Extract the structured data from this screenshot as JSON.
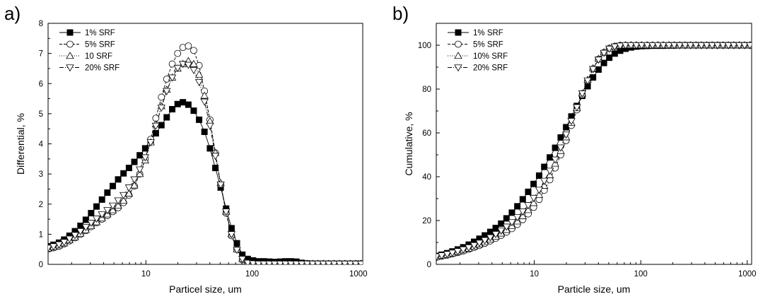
{
  "chart_data": [
    {
      "type": "line",
      "panel_label": "a)",
      "xlabel": "Particel size, um",
      "ylabel": "Differential, %",
      "xscale": "log",
      "xlim": [
        1.2,
        1100
      ],
      "ylim": [
        0,
        8
      ],
      "yticks": [
        0,
        1,
        2,
        3,
        4,
        5,
        6,
        7,
        8
      ],
      "xticks": [
        10,
        100,
        1000
      ],
      "xtick_labels": [
        "10",
        "100",
        "1000"
      ],
      "legend_position": "top-left",
      "series": [
        {
          "name": "1% SRF",
          "marker": "square-filled",
          "dash": "",
          "x": [
            1.2,
            1.35,
            1.52,
            1.7,
            1.91,
            2.15,
            2.42,
            2.72,
            3.05,
            3.43,
            3.86,
            4.34,
            4.88,
            5.48,
            6.16,
            6.93,
            7.79,
            8.76,
            9.85,
            11.1,
            12.4,
            14,
            15.7,
            17.7,
            19.9,
            22.3,
            25.1,
            28.2,
            31.7,
            35.6,
            40.1,
            45.1,
            50.6,
            56.9,
            64,
            71.9,
            80.9,
            90.9,
            102,
            115,
            129,
            145,
            163,
            184,
            206,
            232,
            261,
            293,
            330,
            371,
            417,
            468,
            526,
            592,
            665,
            748,
            841,
            945,
            1060
          ],
          "y": [
            0.6,
            0.65,
            0.72,
            0.82,
            0.95,
            1.1,
            1.28,
            1.48,
            1.7,
            1.92,
            2.15,
            2.38,
            2.6,
            2.82,
            3.02,
            3.2,
            3.4,
            3.62,
            3.85,
            4.1,
            4.35,
            4.62,
            4.88,
            5.15,
            5.32,
            5.38,
            5.3,
            5.1,
            4.8,
            4.4,
            3.85,
            3.2,
            2.55,
            1.85,
            1.2,
            0.7,
            0.32,
            0.18,
            0.13,
            0.1,
            0.1,
            0.09,
            0.08,
            0.09,
            0.1,
            0.1,
            0.09,
            0.05,
            0.03,
            0.02,
            0.02,
            0.02,
            0.02,
            0.02,
            0.02,
            0.02,
            0.02,
            0.02,
            0.02
          ]
        },
        {
          "name": "5% SRF",
          "marker": "circle-open",
          "dash": "4,2",
          "x": [
            1.2,
            1.35,
            1.52,
            1.7,
            1.91,
            2.15,
            2.42,
            2.72,
            3.05,
            3.43,
            3.86,
            4.34,
            4.88,
            5.48,
            6.16,
            6.93,
            7.79,
            8.76,
            9.85,
            11.1,
            12.4,
            14,
            15.7,
            17.7,
            19.9,
            22.3,
            25.1,
            28.2,
            31.7,
            35.6,
            40.1,
            45.1,
            50.6,
            56.9,
            64,
            71.9,
            80.9,
            90.9,
            102,
            115,
            129,
            145,
            163,
            184,
            206,
            232,
            261,
            293,
            330,
            371,
            417,
            468,
            526,
            592,
            665,
            748,
            841,
            945,
            1060
          ],
          "y": [
            0.5,
            0.55,
            0.6,
            0.68,
            0.78,
            0.88,
            1.0,
            1.12,
            1.25,
            1.38,
            1.5,
            1.62,
            1.75,
            1.88,
            2.05,
            2.3,
            2.6,
            3.0,
            3.5,
            4.15,
            4.85,
            5.55,
            6.15,
            6.65,
            7.0,
            7.2,
            7.25,
            7.1,
            6.6,
            5.75,
            4.8,
            3.7,
            2.65,
            1.7,
            0.95,
            0.5,
            0.15,
            0.03,
            0.02,
            0.02,
            0.02,
            0.02,
            0.02,
            0.02,
            0.02,
            0.02,
            0.02,
            0.02,
            0.02,
            0.02,
            0.02,
            0.02,
            0.02,
            0.02,
            0.02,
            0.02,
            0.02,
            0.02,
            0.02
          ]
        },
        {
          "name": "10 SRF",
          "marker": "triangle-up-open",
          "dash": "1,2",
          "x": [
            1.2,
            1.35,
            1.52,
            1.7,
            1.91,
            2.15,
            2.42,
            2.72,
            3.05,
            3.43,
            3.86,
            4.34,
            4.88,
            5.48,
            6.16,
            6.93,
            7.79,
            8.76,
            9.85,
            11.1,
            12.4,
            14,
            15.7,
            17.7,
            19.9,
            22.3,
            25.1,
            28.2,
            31.7,
            35.6,
            40.1,
            45.1,
            50.6,
            56.9,
            64,
            71.9,
            80.9,
            90.9,
            102,
            115,
            129,
            145,
            163,
            184,
            206,
            232,
            261,
            293,
            330,
            371,
            417,
            468,
            526,
            592,
            665,
            748,
            841,
            945,
            1060
          ],
          "y": [
            0.52,
            0.57,
            0.63,
            0.7,
            0.8,
            0.9,
            1.02,
            1.14,
            1.27,
            1.4,
            1.53,
            1.66,
            1.8,
            1.95,
            2.12,
            2.35,
            2.62,
            3.0,
            3.45,
            4.05,
            4.65,
            5.25,
            5.8,
            6.2,
            6.5,
            6.65,
            6.75,
            6.65,
            6.3,
            5.6,
            4.75,
            3.7,
            2.7,
            1.75,
            1.0,
            0.5,
            0.18,
            0.05,
            0.03,
            0.02,
            0.02,
            0.02,
            0.02,
            0.02,
            0.02,
            0.02,
            0.02,
            0.02,
            0.02,
            0.02,
            0.02,
            0.02,
            0.02,
            0.02,
            0.02,
            0.02,
            0.02,
            0.02,
            0.02
          ]
        },
        {
          "name": "20% SRF",
          "marker": "triangle-down-open",
          "dash": "6,2,1,2",
          "x": [
            1.2,
            1.35,
            1.52,
            1.7,
            1.91,
            2.15,
            2.42,
            2.72,
            3.05,
            3.43,
            3.86,
            4.34,
            4.88,
            5.48,
            6.16,
            6.93,
            7.79,
            8.76,
            9.85,
            11.1,
            12.4,
            14,
            15.7,
            17.7,
            19.9,
            22.3,
            25.1,
            28.2,
            31.7,
            35.6,
            40.1,
            45.1,
            50.6,
            56.9,
            64,
            71.9,
            80.9,
            90.9,
            102,
            115,
            129,
            145,
            163,
            184,
            206,
            232,
            261,
            293,
            330,
            371,
            417,
            468,
            526,
            592,
            665,
            748,
            841,
            945,
            1060
          ],
          "y": [
            0.55,
            0.6,
            0.66,
            0.74,
            0.85,
            0.97,
            1.1,
            1.24,
            1.38,
            1.52,
            1.66,
            1.8,
            1.95,
            2.12,
            2.3,
            2.55,
            2.82,
            3.15,
            3.55,
            4.05,
            4.6,
            5.2,
            5.75,
            6.2,
            6.52,
            6.65,
            6.62,
            6.45,
            6.05,
            5.4,
            4.6,
            3.6,
            2.65,
            1.75,
            1.0,
            0.48,
            0.18,
            0.05,
            0.03,
            0.02,
            0.02,
            0.02,
            0.02,
            0.02,
            0.02,
            0.02,
            0.02,
            0.02,
            0.02,
            0.02,
            0.02,
            0.02,
            0.02,
            0.02,
            0.02,
            0.02,
            0.02,
            0.02,
            0.02
          ]
        }
      ]
    },
    {
      "type": "line",
      "panel_label": "b)",
      "xlabel": "Particle size, um",
      "ylabel": "Cumulative, %",
      "xscale": "log",
      "xlim": [
        1.2,
        1100
      ],
      "ylim": [
        0,
        110
      ],
      "yticks": [
        0,
        20,
        40,
        60,
        80,
        100
      ],
      "xticks": [
        10,
        100,
        1000
      ],
      "xtick_labels": [
        "10",
        "100",
        "1000"
      ],
      "legend_position": "top-left",
      "series": [
        {
          "name": "1% SRF",
          "marker": "square-filled",
          "dash": "",
          "x": [
            1.2,
            1.35,
            1.52,
            1.7,
            1.91,
            2.15,
            2.42,
            2.72,
            3.05,
            3.43,
            3.86,
            4.34,
            4.88,
            5.48,
            6.16,
            6.93,
            7.79,
            8.76,
            9.85,
            11.1,
            12.4,
            14,
            15.7,
            17.7,
            19.9,
            22.3,
            25.1,
            28.2,
            31.7,
            35.6,
            40.1,
            45.1,
            50.6,
            56.9,
            64,
            71.9,
            80.9,
            90.9,
            102,
            115,
            129,
            145,
            163,
            184,
            206,
            232,
            261,
            293,
            330,
            371,
            417,
            468,
            526,
            592,
            665,
            748,
            841,
            945,
            1060
          ],
          "y": [
            3.8,
            4.4,
            5.1,
            5.9,
            6.8,
            7.8,
            9.0,
            10.3,
            11.7,
            13.2,
            14.8,
            16.6,
            18.6,
            21.0,
            23.6,
            26.5,
            29.7,
            33.1,
            36.7,
            40.5,
            44.5,
            48.8,
            53.2,
            57.9,
            62.6,
            67.5,
            72.3,
            76.9,
            81.3,
            85.3,
            88.9,
            91.9,
            94.3,
            96.2,
            97.5,
            98.4,
            99.0,
            99.4,
            99.6,
            99.7,
            99.8,
            99.8,
            99.8,
            99.9,
            99.9,
            100,
            100,
            100,
            100,
            100,
            100,
            100,
            100,
            100,
            100,
            100,
            100,
            100,
            100
          ]
        },
        {
          "name": "5% SRF",
          "marker": "circle-open",
          "dash": "4,2",
          "x": [
            1.2,
            1.35,
            1.52,
            1.7,
            1.91,
            2.15,
            2.42,
            2.72,
            3.05,
            3.43,
            3.86,
            4.34,
            4.88,
            5.48,
            6.16,
            6.93,
            7.79,
            8.76,
            9.85,
            11.1,
            12.4,
            14,
            15.7,
            17.7,
            19.9,
            22.3,
            25.1,
            28.2,
            31.7,
            35.6,
            40.1,
            45.1,
            50.6,
            56.9,
            64,
            71.9,
            80.9,
            90.9,
            102,
            115,
            129,
            145,
            163,
            184,
            206,
            232,
            261,
            293,
            330,
            371,
            417,
            468,
            526,
            592,
            665,
            748,
            841,
            945,
            1060
          ],
          "y": [
            3.2,
            3.7,
            4.2,
            4.8,
            5.4,
            6.1,
            6.9,
            7.7,
            8.6,
            9.6,
            10.7,
            11.9,
            13.2,
            14.7,
            16.3,
            18.2,
            20.4,
            23.0,
            26.0,
            29.6,
            33.8,
            38.6,
            44.0,
            50.0,
            56.5,
            63.4,
            70.5,
            77.4,
            83.8,
            89.2,
            93.6,
            96.7,
            98.6,
            99.5,
            99.9,
            100,
            100,
            100,
            100,
            100,
            100,
            100,
            100,
            100,
            100,
            100,
            100,
            100,
            100,
            100,
            100,
            100,
            100,
            100,
            100,
            100,
            100,
            100,
            100
          ]
        },
        {
          "name": "10% SRF",
          "marker": "triangle-up-open",
          "dash": "1,2",
          "x": [
            1.2,
            1.35,
            1.52,
            1.7,
            1.91,
            2.15,
            2.42,
            2.72,
            3.05,
            3.43,
            3.86,
            4.34,
            4.88,
            5.48,
            6.16,
            6.93,
            7.79,
            8.76,
            9.85,
            11.1,
            12.4,
            14,
            15.7,
            17.7,
            19.9,
            22.3,
            25.1,
            28.2,
            31.7,
            35.6,
            40.1,
            45.1,
            50.6,
            56.9,
            64,
            71.9,
            80.9,
            90.9,
            102,
            115,
            129,
            145,
            163,
            184,
            206,
            232,
            261,
            293,
            330,
            371,
            417,
            468,
            526,
            592,
            665,
            748,
            841,
            945,
            1060
          ],
          "y": [
            3.4,
            3.9,
            4.4,
            5.0,
            5.7,
            6.4,
            7.2,
            8.1,
            9.1,
            10.2,
            11.4,
            12.7,
            14.1,
            15.7,
            17.5,
            19.6,
            22.0,
            24.8,
            28.0,
            31.7,
            35.9,
            40.7,
            46.0,
            51.8,
            58.0,
            64.6,
            71.3,
            78.0,
            84.2,
            89.5,
            93.8,
            96.8,
            98.6,
            99.5,
            99.9,
            100,
            100,
            100,
            100,
            100,
            100,
            100,
            100,
            100,
            100,
            100,
            100,
            100,
            100,
            100,
            100,
            100,
            100,
            100,
            100,
            100,
            100,
            100,
            100
          ]
        },
        {
          "name": "20% SRF",
          "marker": "triangle-down-open",
          "dash": "6,2,1,2",
          "x": [
            1.2,
            1.35,
            1.52,
            1.7,
            1.91,
            2.15,
            2.42,
            2.72,
            3.05,
            3.43,
            3.86,
            4.34,
            4.88,
            5.48,
            6.16,
            6.93,
            7.79,
            8.76,
            9.85,
            11.1,
            12.4,
            14,
            15.7,
            17.7,
            19.9,
            22.3,
            25.1,
            28.2,
            31.7,
            35.6,
            40.1,
            45.1,
            50.6,
            56.9,
            64,
            71.9,
            80.9,
            90.9,
            102,
            115,
            129,
            145,
            163,
            184,
            206,
            232,
            261,
            293,
            330,
            371,
            417,
            468,
            526,
            592,
            665,
            748,
            841,
            945,
            1060
          ],
          "y": [
            3.6,
            4.1,
            4.7,
            5.3,
            6.0,
            6.8,
            7.7,
            8.7,
            9.8,
            11.0,
            12.3,
            13.8,
            15.4,
            17.2,
            19.2,
            21.5,
            24.1,
            27.0,
            30.3,
            34.0,
            38.1,
            42.7,
            47.8,
            53.3,
            59.2,
            65.4,
            71.7,
            78.0,
            83.9,
            89.1,
            93.4,
            96.5,
            98.4,
            99.4,
            99.8,
            100,
            100,
            100,
            100,
            100,
            100,
            100,
            100,
            100,
            100,
            100,
            100,
            100,
            100,
            100,
            100,
            100,
            100,
            100,
            100,
            100,
            100,
            100,
            100
          ]
        }
      ]
    }
  ]
}
